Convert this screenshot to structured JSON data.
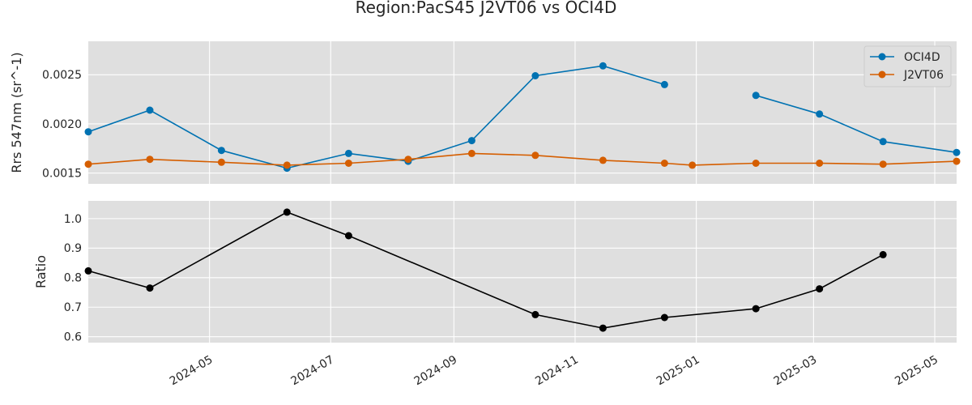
{
  "figure_title": "Region:PacS45 J2VT06 vs OCI4D",
  "x_ticks": [
    "2024-05",
    "2024-07",
    "2024-09",
    "2024-11",
    "2025-01",
    "2025-03",
    "2025-05"
  ],
  "chart_data": [
    {
      "type": "line",
      "ylabel": "Rrs 547nm (sr^-1)",
      "xlim": [
        "2024-03-01",
        "2025-05-12"
      ],
      "ylim": [
        0.00139,
        0.00284
      ],
      "y_ticks": [
        "0.0015",
        "0.0020",
        "0.0025"
      ],
      "grid": true,
      "legend": "top-right",
      "series": [
        {
          "name": "OCI4D",
          "color": "#0072b2",
          "points": [
            {
              "x": "2024-03-01",
              "y": 0.00192
            },
            {
              "x": "2024-04-01",
              "y": 0.00214
            },
            {
              "x": "2024-05-07",
              "y": 0.00173
            },
            {
              "x": "2024-06-09",
              "y": 0.00155
            },
            {
              "x": "2024-07-10",
              "y": 0.0017
            },
            {
              "x": "2024-08-09",
              "y": 0.00162
            },
            {
              "x": "2024-09-10",
              "y": 0.00183
            },
            {
              "x": "2024-10-12",
              "y": 0.00249
            },
            {
              "x": "2024-11-15",
              "y": 0.00259
            },
            {
              "x": "2024-12-16",
              "y": 0.0024
            },
            {
              "x": "2025-01-30",
              "y": null
            },
            {
              "x": "2025-01-31",
              "y": 0.00229
            },
            {
              "x": "2025-03-04",
              "y": 0.0021
            },
            {
              "x": "2025-04-05",
              "y": 0.00182
            },
            {
              "x": "2025-05-12",
              "y": 0.00171
            }
          ]
        },
        {
          "name": "J2VT06",
          "color": "#d55e00",
          "points": [
            {
              "x": "2024-03-01",
              "y": 0.00159
            },
            {
              "x": "2024-04-01",
              "y": 0.00164
            },
            {
              "x": "2024-05-07",
              "y": 0.00161
            },
            {
              "x": "2024-06-09",
              "y": 0.00158
            },
            {
              "x": "2024-07-10",
              "y": 0.0016
            },
            {
              "x": "2024-08-09",
              "y": 0.00164
            },
            {
              "x": "2024-09-10",
              "y": 0.0017
            },
            {
              "x": "2024-10-12",
              "y": 0.00168
            },
            {
              "x": "2024-11-15",
              "y": 0.00163
            },
            {
              "x": "2024-12-16",
              "y": 0.0016
            },
            {
              "x": "2024-12-30",
              "y": 0.00158
            },
            {
              "x": "2025-01-31",
              "y": 0.0016
            },
            {
              "x": "2025-03-04",
              "y": 0.0016
            },
            {
              "x": "2025-04-05",
              "y": 0.00159
            },
            {
              "x": "2025-05-12",
              "y": 0.00162
            }
          ]
        }
      ]
    },
    {
      "type": "line",
      "ylabel": "Ratio",
      "xlim": [
        "2024-03-01",
        "2025-05-12"
      ],
      "ylim": [
        0.58,
        1.06
      ],
      "y_ticks": [
        "0.6",
        "0.7",
        "0.8",
        "0.9",
        "1.0"
      ],
      "grid": true,
      "series": [
        {
          "color": "#000000",
          "points": [
            {
              "x": "2024-03-01",
              "y": 0.823
            },
            {
              "x": "2024-04-01",
              "y": 0.765
            },
            {
              "x": "2024-06-09",
              "y": 1.022
            },
            {
              "x": "2024-07-10",
              "y": 0.942
            },
            {
              "x": "2024-10-12",
              "y": 0.675
            },
            {
              "x": "2024-11-15",
              "y": 0.629
            },
            {
              "x": "2024-12-16",
              "y": 0.665
            },
            {
              "x": "2025-01-31",
              "y": 0.695
            },
            {
              "x": "2025-03-04",
              "y": 0.762
            },
            {
              "x": "2025-04-05",
              "y": 0.878
            }
          ]
        }
      ]
    }
  ]
}
